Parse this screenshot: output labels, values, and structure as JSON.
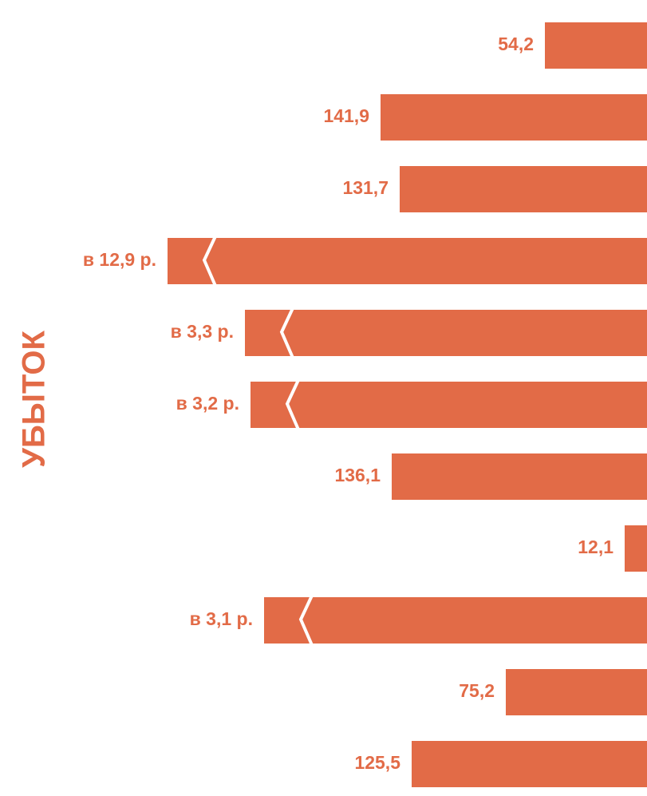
{
  "colors": {
    "bar": "#E26B47",
    "text": "#E26B47",
    "break_gap": "#ffffff"
  },
  "side_label": "УБЫТОК",
  "chart_data": {
    "type": "bar",
    "orientation": "horizontal",
    "bar_alignment": "right",
    "grid": false,
    "legend": "none",
    "bars": [
      {
        "label": "54,2",
        "value": 54.2,
        "broken": false
      },
      {
        "label": "141,9",
        "value": 141.9,
        "broken": false
      },
      {
        "label": "131,7",
        "value": 131.7,
        "broken": false
      },
      {
        "label": "в 12,9 р.",
        "value": 1290,
        "broken": true
      },
      {
        "label": "в 3,3 р.",
        "value": 330,
        "broken": true
      },
      {
        "label": "в 3,2 р.",
        "value": 320,
        "broken": true
      },
      {
        "label": "136,1",
        "value": 136.1,
        "broken": false
      },
      {
        "label": "12,1",
        "value": 12.1,
        "broken": false
      },
      {
        "label": "в 3,1 р.",
        "value": 310,
        "broken": true
      },
      {
        "label": "75,2",
        "value": 75.2,
        "broken": false
      },
      {
        "label": "125,5",
        "value": 125.5,
        "broken": false
      }
    ]
  }
}
